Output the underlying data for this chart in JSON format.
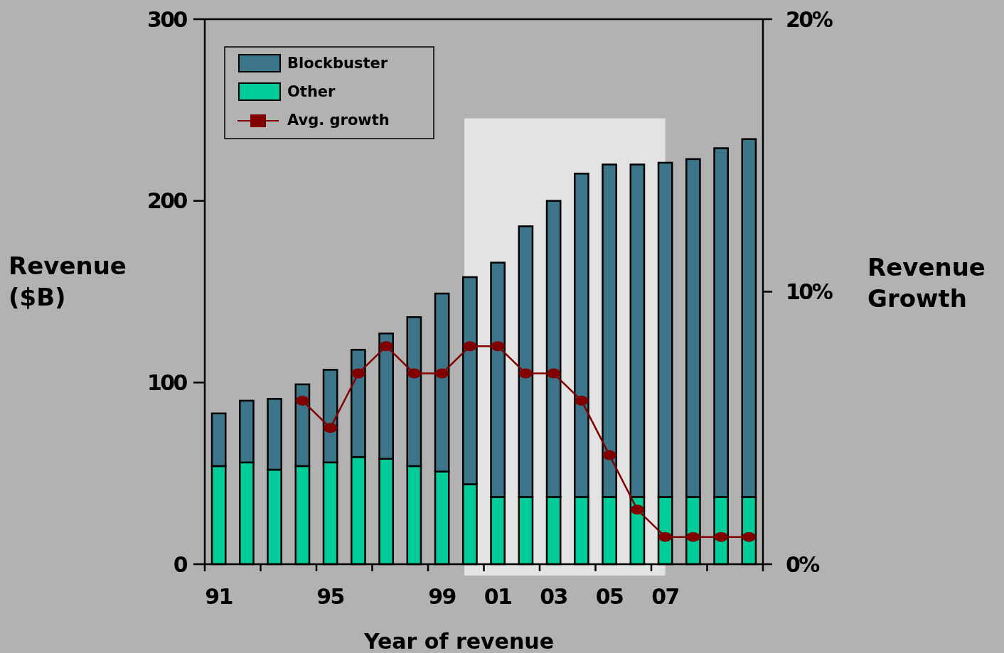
{
  "chart_data": {
    "type": "bar",
    "stacked": true,
    "x": [
      1991,
      1992,
      1993,
      1994,
      1995,
      1996,
      1997,
      1998,
      1999,
      2000,
      2001,
      2002,
      2003,
      2004,
      2005,
      2006,
      2007,
      2008,
      2009,
      2010
    ],
    "xlim": [
      1990.5,
      2010.5
    ],
    "xticks": [
      {
        "value": 1990.5,
        "label": null
      },
      {
        "value": 1991,
        "label": "91"
      },
      {
        "value": 1992.5,
        "label": null
      },
      {
        "value": 1994.5,
        "label": null
      },
      {
        "value": 1995,
        "label": "95"
      },
      {
        "value": 1996.5,
        "label": null
      },
      {
        "value": 1998.5,
        "label": null
      },
      {
        "value": 1999,
        "label": "99"
      },
      {
        "value": 2000.5,
        "label": null
      },
      {
        "value": 2001,
        "label": "01"
      },
      {
        "value": 2002.5,
        "label": null
      },
      {
        "value": 2003,
        "label": "03"
      },
      {
        "value": 2004.5,
        "label": null
      },
      {
        "value": 2005,
        "label": "05"
      },
      {
        "value": 2006.5,
        "label": null
      },
      {
        "value": 2007,
        "label": "07"
      },
      {
        "value": 2008.5,
        "label": null
      },
      {
        "value": 2010.5,
        "label": null
      }
    ],
    "ylim": [
      0,
      300
    ],
    "yticks": [
      0,
      100,
      200,
      300
    ],
    "y2lim": [
      0,
      20
    ],
    "y2ticks": [
      {
        "value": 0,
        "label": "0%"
      },
      {
        "value": 10,
        "label": "10%"
      },
      {
        "value": 20,
        "label": "20%"
      }
    ],
    "xlabel": "Year of revenue",
    "ylabel": "Revenue ($B)",
    "y2label": "Revenue Growth",
    "series": [
      {
        "name": "Other",
        "color": "#00cc99",
        "values": [
          54,
          56,
          52,
          54,
          56,
          59,
          58,
          54,
          51,
          44,
          37,
          37,
          37,
          37,
          37,
          37,
          37,
          37,
          37,
          37
        ]
      },
      {
        "name": "Blockbuster",
        "color": "#3c7489",
        "values": [
          29,
          34,
          39,
          45,
          51,
          59,
          69,
          82,
          98,
          114,
          129,
          149,
          163,
          178,
          183,
          183,
          184,
          186,
          192,
          197
        ]
      },
      {
        "name": "Avg. growth",
        "type": "line",
        "axis": "y2",
        "color": "#800000",
        "values": [
          null,
          null,
          null,
          6,
          5,
          7,
          8,
          7,
          7,
          8,
          8,
          7,
          7,
          6,
          4,
          2,
          1,
          1,
          1,
          1
        ]
      }
    ],
    "bands": [
      {
        "axis": "x",
        "from": 1999.8,
        "to": 2007,
        "color": "#e3e3e3"
      }
    ],
    "legend": "top left",
    "marker": "circle"
  }
}
